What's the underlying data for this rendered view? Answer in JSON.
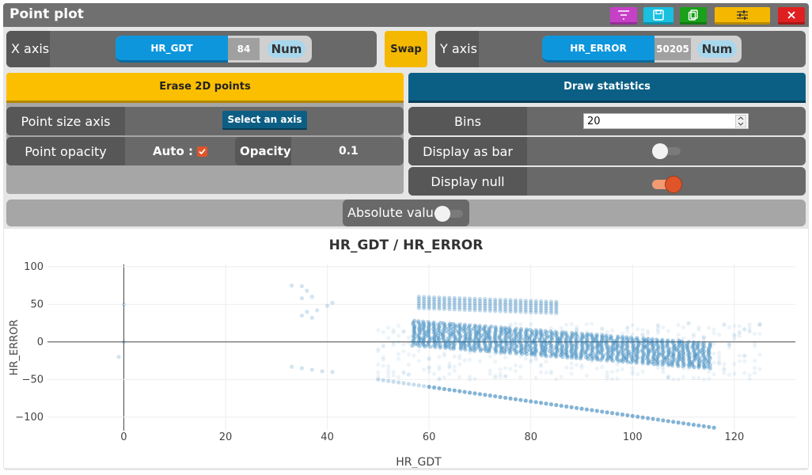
{
  "window": {
    "title": "Point plot"
  },
  "toolbar": {
    "filter_icon": "filter-icon",
    "save_icon": "save-icon",
    "copy_icon": "copy-icon",
    "settings_icon": "sliders-icon",
    "close_icon": "close-icon",
    "colors": {
      "filter": "#c740c8",
      "save": "#19c0e0",
      "copy": "#1aa01a",
      "settings": "#f5b800",
      "close": "#e02020"
    }
  },
  "axes_bar": {
    "x_label": "X axis",
    "x_field": "HR_GDT",
    "x_count": "84",
    "x_type": "Num",
    "swap_label": "Swap",
    "y_label": "Y axis",
    "y_field": "HR_ERROR",
    "y_count": "50205",
    "y_type": "Num"
  },
  "left_panel": {
    "erase_button": "Erase 2D points",
    "point_size_label": "Point size axis",
    "select_axis_button": "Select an axis",
    "opacity_row_label": "Point opacity",
    "auto_label": "Auto :",
    "auto_checked": true,
    "opacity_label": "Opacity",
    "opacity_value": "0.1"
  },
  "right_panel": {
    "draw_stats_button": "Draw statistics",
    "bins_label": "Bins",
    "bins_value": "20",
    "display_bar_label": "Display as bar",
    "display_bar_on": false,
    "display_null_label": "Display null",
    "display_null_on": true
  },
  "absolute": {
    "label": "Absolute value",
    "on": false
  },
  "chart_data": {
    "type": "scatter",
    "title": "HR_GDT / HR_ERROR",
    "xlabel": "HR_GDT",
    "ylabel": "HR_ERROR",
    "xlim": [
      -15,
      132
    ],
    "ylim": [
      -118,
      103
    ],
    "x_ticks": [
      "0",
      "20",
      "40",
      "60",
      "80",
      "100",
      "120"
    ],
    "y_ticks": [
      "100",
      "50",
      "0",
      "−50",
      "−100"
    ],
    "color": "#1f77b4",
    "opacity": 0.1,
    "series": [
      {
        "values_desc": "main band",
        "x_range": [
          57,
          115
        ],
        "y_start": [
          30,
          -5
        ],
        "y_end": [
          0,
          -35
        ]
      },
      {
        "values_desc": "upper band",
        "x_range": [
          58,
          85
        ],
        "y_start": [
          50,
          62
        ],
        "y_end": [
          45,
          55
        ]
      },
      {
        "values_desc": "lower line",
        "x": [
          50,
          60,
          70,
          80,
          90,
          100,
          110,
          116
        ],
        "y": [
          -50,
          -61,
          -68,
          -79,
          -87,
          -97,
          -106,
          -114
        ]
      },
      {
        "values_desc": "left cluster",
        "x": [
          33,
          35,
          36,
          37,
          38,
          40,
          41
        ],
        "y": [
          75,
          60,
          40,
          35,
          45,
          55,
          50
        ]
      },
      {
        "values_desc": "left low",
        "x": [
          33,
          35,
          37,
          39,
          41
        ],
        "y": [
          -33,
          -35,
          -37,
          -39,
          -40
        ]
      }
    ]
  }
}
